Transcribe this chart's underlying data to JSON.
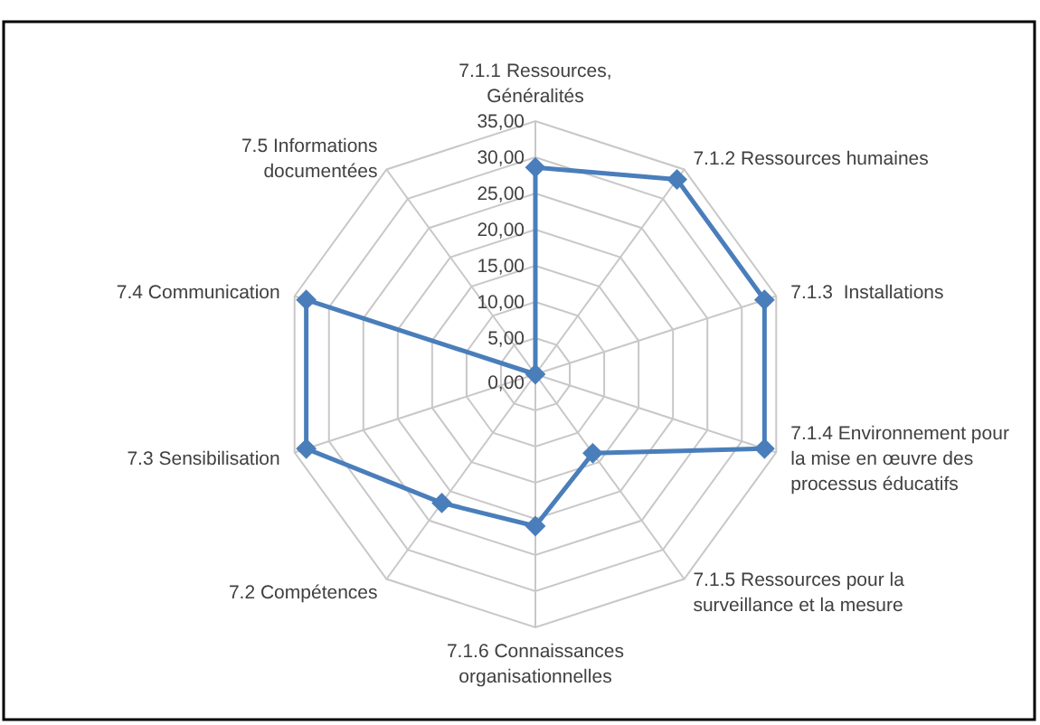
{
  "chart_data": {
    "type": "radar",
    "categories": [
      "7.1.1 Ressources,\nGénéralités",
      "7.1.2 Ressources humaines",
      "7.1.3  Installations",
      "7.1.4 Environnement pour\nla mise en œuvre des\nprocessus éducatifs",
      "7.1.5 Ressources pour la\nsurveillance et la mesure",
      "7.1.6 Connaissances\norganisationnelles",
      "7.2 Compétences",
      "7.3 Sensibilisation",
      "7.4 Communication",
      "7.5 Informations\ndocumentées"
    ],
    "series": [
      {
        "color": "#4a7ebb",
        "values": [
          28.6,
          33.3,
          33.3,
          33.3,
          13.5,
          21,
          22,
          33.3,
          33.3,
          0
        ]
      }
    ],
    "ylim": [
      0,
      35
    ],
    "yticks": [
      {
        "value": 0,
        "label": "0,00"
      },
      {
        "value": 5,
        "label": "5,00"
      },
      {
        "value": 10,
        "label": "10,00"
      },
      {
        "value": 15,
        "label": "15,00"
      },
      {
        "value": 20,
        "label": "20,00"
      },
      {
        "value": 25,
        "label": "25,00"
      },
      {
        "value": 30,
        "label": "30,00"
      },
      {
        "value": 35,
        "label": "35,00"
      }
    ],
    "grid": true,
    "marker": "diamond",
    "line_style": "solid"
  }
}
